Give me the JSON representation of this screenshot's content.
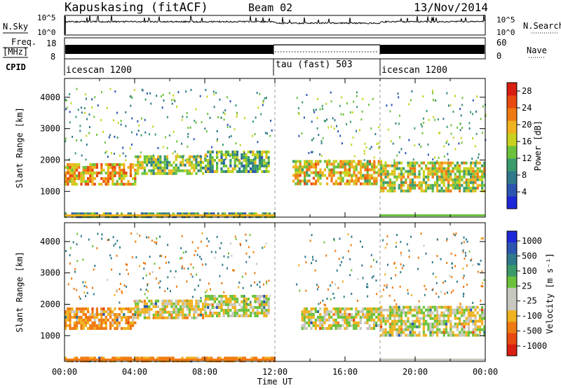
{
  "header": {
    "station": "Kapuskasing (fitACF)",
    "beam": "Beam 02",
    "date": "13/Nov/2014"
  },
  "top_panels": {
    "nsky_label": "N.Sky",
    "nsky_ticks": [
      "10^5",
      "10^0"
    ],
    "nsky_right_ticks": [
      "10^5",
      "10^0"
    ],
    "nsearch_label": "N.Search",
    "freq_label": "Freq.",
    "freq_unit": "[MHz]",
    "freq_ticks": [
      "18",
      "8"
    ],
    "nave_ticks": [
      "60",
      "0"
    ],
    "nave_label": "Nave",
    "cpid_label": "CPID",
    "cpid_segments": [
      {
        "name": "icescan 1200",
        "start_h": 0,
        "end_h": 12
      },
      {
        "name": "tau (fast) 503",
        "start_h": 12,
        "end_h": 18
      },
      {
        "name": "icescan 1200",
        "start_h": 18,
        "end_h": 24
      }
    ]
  },
  "colors": {
    "power_scale": [
      "#1f28d8",
      "#2c55b0",
      "#2f7a8a",
      "#3a9a6a",
      "#6cc23c",
      "#c8d21e",
      "#f0b21e",
      "#f07a12",
      "#e84a10",
      "#d81e10"
    ],
    "velocity_scale": [
      "#1f28d8",
      "#2c55b0",
      "#2f7a8a",
      "#3a9a6a",
      "#6cc23c",
      "#c8c8c0",
      "#c8c8c0",
      "#f0b21e",
      "#f07a12",
      "#e84a10",
      "#d81e10"
    ]
  },
  "chart_data": [
    {
      "type": "heatmap",
      "name": "power",
      "xlabel": "Time UT",
      "ylabel": "Slant Range [km]",
      "x_ticks": [
        "00:00",
        "04:00",
        "08:00",
        "12:00",
        "16:00",
        "20:00",
        "00:00"
      ],
      "xlim_h": [
        0,
        24
      ],
      "y_ticks": [
        1000,
        2000,
        3000,
        4000
      ],
      "ylim": [
        180,
        4600
      ],
      "colorbar": {
        "label": "Power [dB]",
        "ticks": [
          4,
          8,
          12,
          16,
          20,
          24,
          28
        ],
        "range": [
          0,
          30
        ]
      },
      "bands": [
        {
          "t0": 0.0,
          "t1": 4.0,
          "r0": 1250,
          "r1": 1900,
          "level": 20
        },
        {
          "t0": 4.0,
          "t1": 8.0,
          "r0": 1550,
          "r1": 2150,
          "level": 14
        },
        {
          "t0": 8.0,
          "t1": 11.7,
          "r0": 1650,
          "r1": 2300,
          "level": 12
        },
        {
          "t0": 13.0,
          "t1": 18.0,
          "r0": 1250,
          "r1": 2000,
          "level": 18
        },
        {
          "t0": 18.0,
          "t1": 24.0,
          "r0": 1000,
          "r1": 1950,
          "level": 16
        },
        {
          "t0": 0.0,
          "t1": 12.0,
          "r0": 200,
          "r1": 330,
          "level": 10
        }
      ]
    },
    {
      "type": "heatmap",
      "name": "velocity",
      "xlabel": "Time UT",
      "ylabel": "Slant Range [km]",
      "x_ticks": [
        "00:00",
        "04:00",
        "08:00",
        "12:00",
        "16:00",
        "20:00",
        "00:00"
      ],
      "xlim_h": [
        0,
        24
      ],
      "y_ticks": [
        1000,
        2000,
        3000,
        4000
      ],
      "ylim": [
        180,
        4600
      ],
      "colorbar": {
        "label": "Velocity [m s⁻¹]",
        "ticks": [
          "1000",
          "500",
          "100",
          "25",
          "-25",
          "-100",
          "-500",
          "-1000"
        ]
      },
      "bands": [
        {
          "t0": 0.0,
          "t1": 4.0,
          "r0": 1250,
          "r1": 1900,
          "level": -100
        },
        {
          "t0": 4.0,
          "t1": 8.0,
          "r0": 1550,
          "r1": 2150,
          "level": -25
        },
        {
          "t0": 8.0,
          "t1": 11.7,
          "r0": 1650,
          "r1": 2300,
          "level": 0
        },
        {
          "t0": 13.5,
          "t1": 18.0,
          "r0": 1250,
          "r1": 1900,
          "level": 0
        },
        {
          "t0": 18.0,
          "t1": 24.0,
          "r0": 1000,
          "r1": 1950,
          "level": 0
        },
        {
          "t0": 0.0,
          "t1": 12.0,
          "r0": 200,
          "r1": 330,
          "level": -100
        }
      ]
    }
  ]
}
